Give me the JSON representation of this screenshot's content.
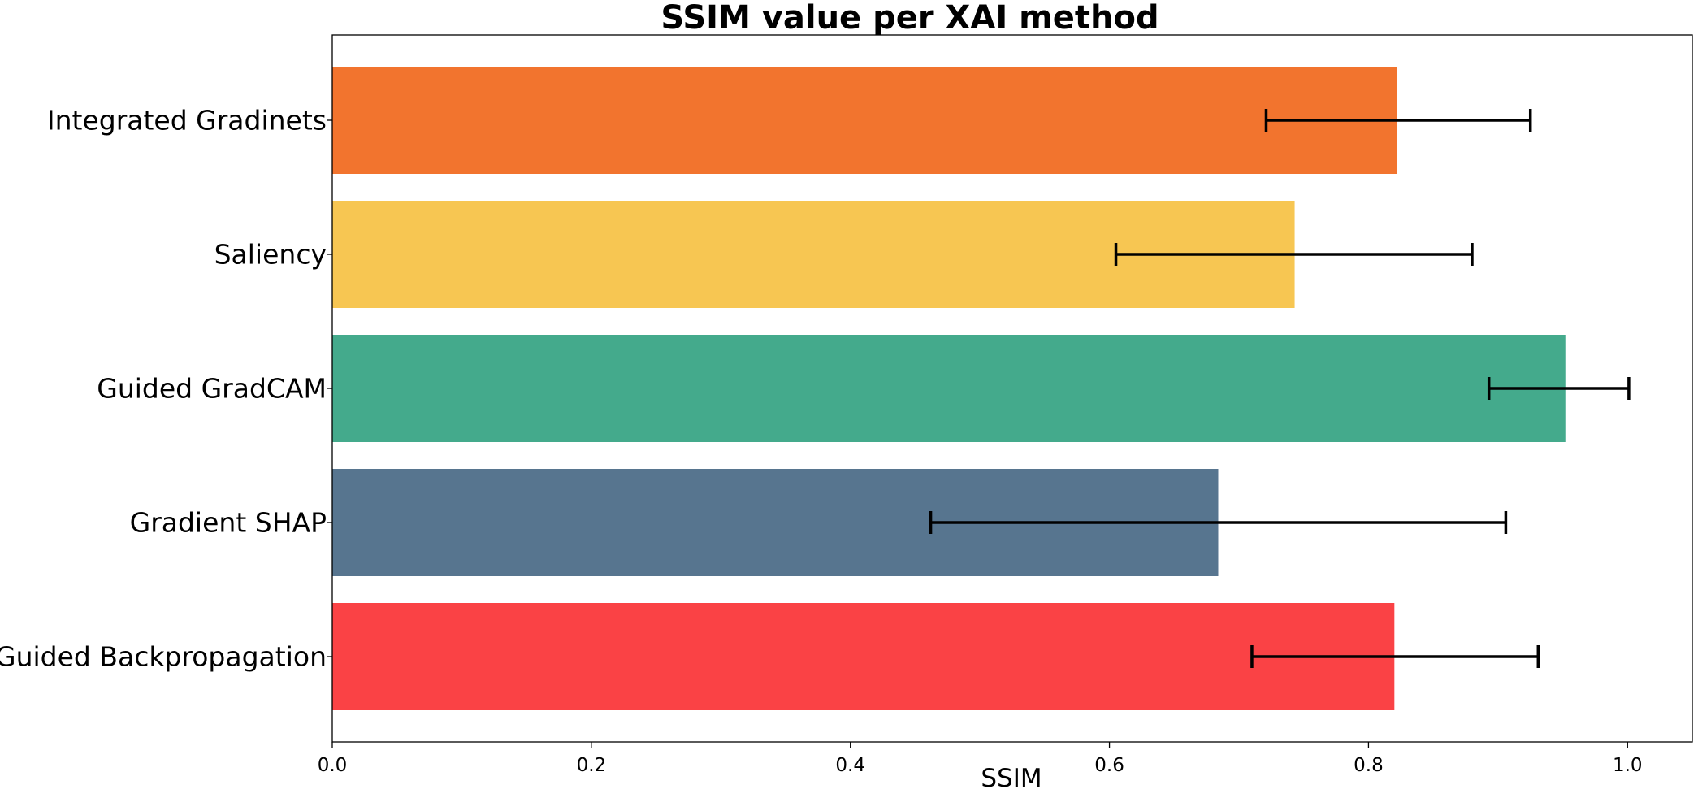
{
  "chart_data": {
    "type": "bar",
    "orientation": "horizontal",
    "title": "SSIM value per XAI method",
    "xlabel": "SSIM",
    "ylabel": "",
    "xlim": [
      0.0,
      1.05
    ],
    "xticks": [
      "0.0",
      "0.2",
      "0.4",
      "0.6",
      "0.8",
      "1.0"
    ],
    "categories": [
      "Integrated Gradinets",
      "Saliency",
      "Guided GradCAM",
      "Gradient SHAP",
      "Guided Backpropagation"
    ],
    "values": [
      0.822,
      0.743,
      0.952,
      0.684,
      0.82
    ],
    "error_low": [
      0.721,
      0.605,
      0.893,
      0.462,
      0.71
    ],
    "error_high": [
      0.925,
      0.88,
      1.001,
      0.906,
      0.931
    ],
    "colors": [
      "#f2742e",
      "#f7c652",
      "#44aa8c",
      "#57758f",
      "#fa4245"
    ],
    "grid": false,
    "legend": false
  }
}
